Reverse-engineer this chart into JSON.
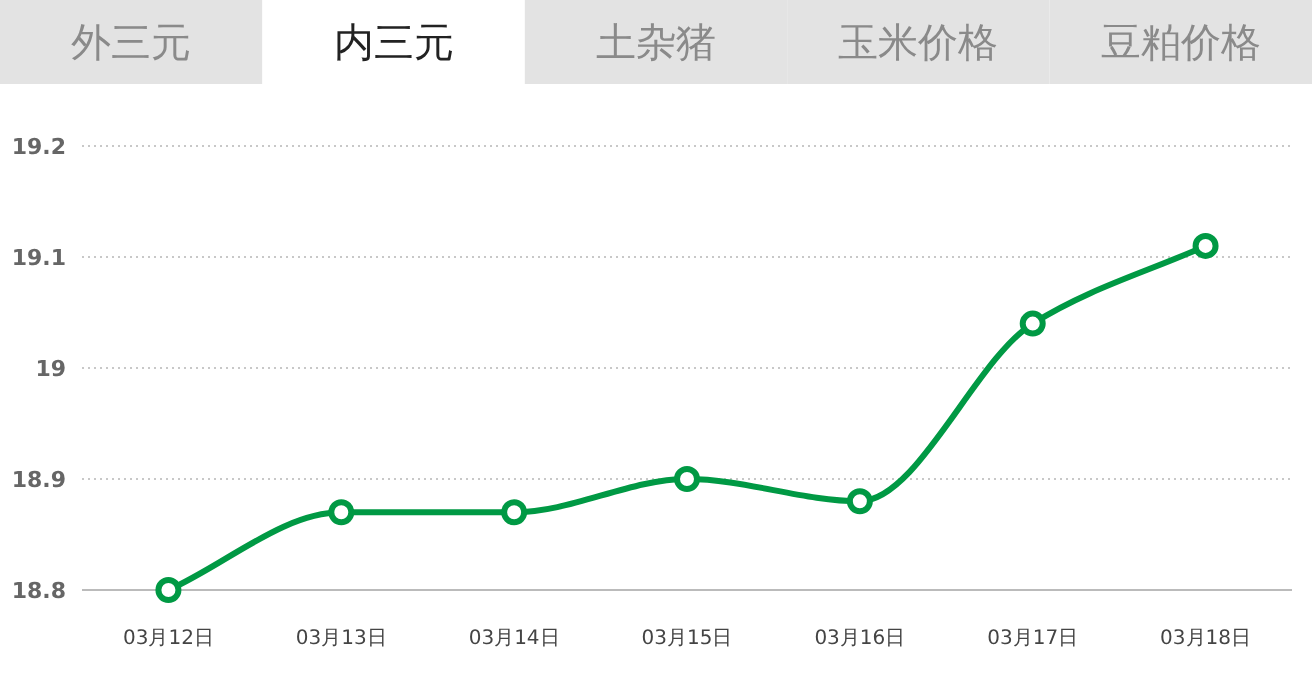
{
  "chart_data": {
    "type": "line",
    "annotations": [
      "外三元",
      "内三元",
      "土杂猪",
      "玉米价格",
      "豆粕价格"
    ],
    "categories": [
      "03月12日",
      "03月13日",
      "03月14日",
      "03月15日",
      "03月16日",
      "03月17日",
      "03月18日"
    ],
    "series": [
      {
        "color": "#009944",
        "values": [
          18.8,
          18.87,
          18.87,
          18.9,
          18.88,
          19.04,
          19.11
        ]
      }
    ],
    "ylim": [
      18.8,
      19.2
    ],
    "yticks": [
      18.8,
      18.9,
      19,
      19.1,
      19.2
    ],
    "grid": "y",
    "marker": "circle",
    "line_style": "solid"
  }
}
